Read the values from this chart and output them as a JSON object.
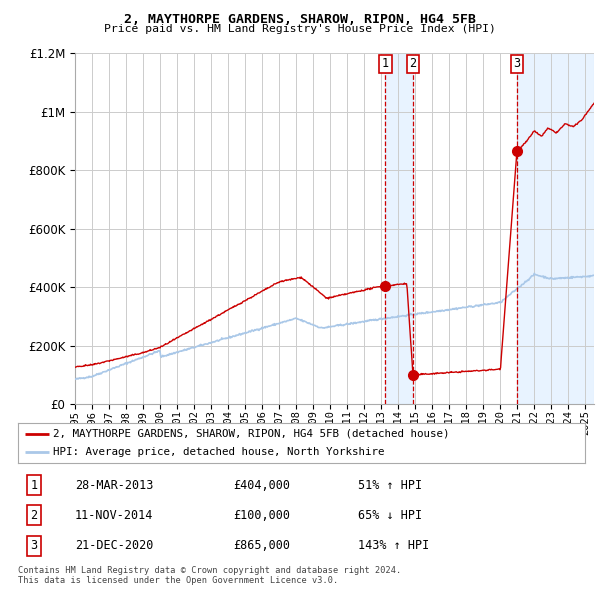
{
  "title1": "2, MAYTHORPE GARDENS, SHAROW, RIPON, HG4 5FB",
  "title2": "Price paid vs. HM Land Registry's House Price Index (HPI)",
  "background_color": "#ffffff",
  "plot_bg_color": "#ffffff",
  "grid_color": "#cccccc",
  "sale_color": "#cc0000",
  "hpi_color": "#aac8e8",
  "transactions": [
    {
      "num": 1,
      "date_label": "28-MAR-2013",
      "date_x": 2013.24,
      "price": 404000,
      "pct": "51%",
      "dir": "↑"
    },
    {
      "num": 2,
      "date_label": "11-NOV-2014",
      "date_x": 2014.86,
      "price": 100000,
      "pct": "65%",
      "dir": "↓"
    },
    {
      "num": 3,
      "date_label": "21-DEC-2020",
      "date_x": 2020.97,
      "price": 865000,
      "pct": "143%",
      "dir": "↑"
    }
  ],
  "legend_sale_label": "2, MAYTHORPE GARDENS, SHAROW, RIPON, HG4 5FB (detached house)",
  "legend_hpi_label": "HPI: Average price, detached house, North Yorkshire",
  "footnote1": "Contains HM Land Registry data © Crown copyright and database right 2024.",
  "footnote2": "This data is licensed under the Open Government Licence v3.0.",
  "xmin": 1995,
  "xmax": 2025.5,
  "ymin": 0,
  "ymax": 1200000,
  "shade1_x1": 2013.24,
  "shade1_x2": 2014.86,
  "shade2_x1": 2020.97,
  "shade2_x2": 2025.5,
  "shade_color": "#ddeeff",
  "shade_alpha": 0.65
}
